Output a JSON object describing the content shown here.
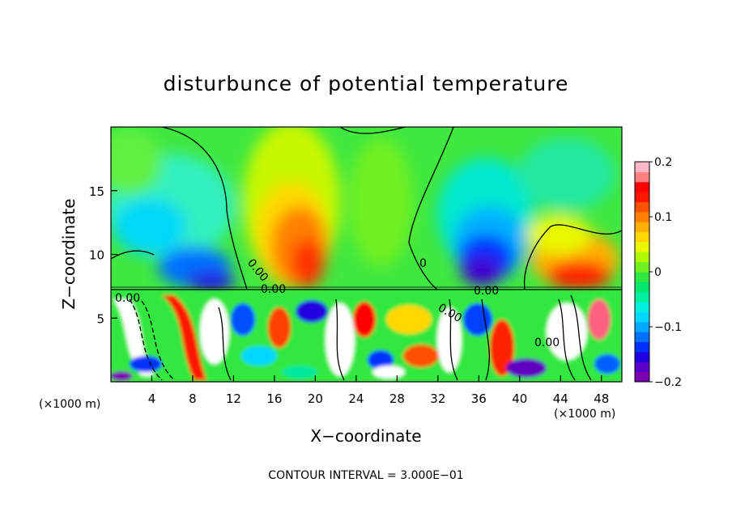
{
  "chart_data": {
    "type": "heatmap",
    "title": "disturbunce of potential temperature",
    "xlabel": "X−coordinate",
    "ylabel": "Z−coordinate",
    "x_unit_left": "(×1000 m)",
    "x_unit_right": "(×1000 m)",
    "xlim": [
      0,
      50
    ],
    "ylim": [
      0,
      20
    ],
    "x_ticks": [
      4,
      8,
      12,
      16,
      20,
      24,
      28,
      32,
      36,
      40,
      44,
      48
    ],
    "y_ticks": [
      5,
      10,
      15
    ],
    "colorbar": {
      "range": [
        -0.2,
        0.2
      ],
      "tick_values": [
        0.2,
        0.1,
        0,
        -0.1,
        -0.2
      ],
      "tick_labels": [
        "0.2",
        "0.1",
        "0",
        "−0.1",
        "−0.2"
      ],
      "colors": [
        "#7a00b0",
        "#5a00c8",
        "#2000e0",
        "#0030ff",
        "#0070ff",
        "#00a8ff",
        "#00d8ff",
        "#00f0e0",
        "#00f0a0",
        "#00e870",
        "#30e840",
        "#70f020",
        "#b0f800",
        "#e8f800",
        "#ffd800",
        "#ffb000",
        "#ff8000",
        "#ff5000",
        "#ff1800",
        "#ff0000",
        "#ff8080",
        "#ffb8c8"
      ]
    },
    "contour_labels": [
      "0.00",
      "0",
      "0.00",
      "0.00",
      "0.00",
      "0.00",
      "0.00"
    ],
    "features": [
      {
        "kind": "warm-anomaly",
        "x": 19,
        "z": 11,
        "value": 0.15
      },
      {
        "kind": "cold-anomaly",
        "x": 35,
        "z": 9,
        "value": -0.2
      },
      {
        "kind": "cold-anomaly",
        "x": 7,
        "z": 12,
        "value": -0.08
      },
      {
        "kind": "warm-anomaly",
        "x": 45,
        "z": 9,
        "value": 0.13
      },
      {
        "kind": "cold-anomaly",
        "x": 40,
        "z": 15,
        "value": -0.08
      },
      {
        "kind": "turbulent-layer",
        "z_range": [
          0,
          7.3
        ]
      }
    ],
    "footer": "CONTOUR INTERVAL = 3.000E−01",
    "grid": false,
    "legend": "right"
  }
}
